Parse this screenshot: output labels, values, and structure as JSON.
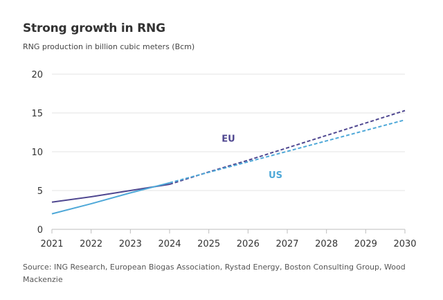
{
  "header": {
    "title": "Strong growth in RNG",
    "subtitle": "RNG production in billion cubic meters (Bcm)"
  },
  "footer": {
    "source": "Source: ING Research, European Biogas Association, Rystad Energy, Boston Consulting Group, Wood Mackenzie"
  },
  "chart_data": {
    "type": "line",
    "title": "Strong growth in RNG",
    "subtitle": "RNG production in billion cubic meters (Bcm)",
    "xlabel": "",
    "ylabel": "",
    "x": [
      2021,
      2022,
      2023,
      2024,
      2025,
      2026,
      2027,
      2028,
      2029,
      2030
    ],
    "xlim": [
      2021,
      2030
    ],
    "ylim": [
      0,
      20
    ],
    "yticks": [
      0,
      5,
      10,
      15,
      20
    ],
    "xticks": [
      "2021",
      "2022",
      "2023",
      "2024",
      "2025",
      "2026",
      "2027",
      "2028",
      "2029",
      "2030"
    ],
    "grid": true,
    "legend": "inline labels",
    "series": [
      {
        "name": "EU",
        "color": "#4f4790",
        "historical": {
          "x": [
            2021,
            2022,
            2023,
            2024
          ],
          "y": [
            3.5,
            4.2,
            5.0,
            5.8
          ]
        },
        "forecast": {
          "x": [
            2024,
            2025,
            2026,
            2027,
            2028,
            2029,
            2030
          ],
          "y": [
            5.8,
            7.4,
            8.9,
            10.5,
            12.1,
            13.7,
            15.3
          ]
        },
        "label_at": {
          "x": 2025.5,
          "y": 11.3
        }
      },
      {
        "name": "US",
        "color": "#4ea8d8",
        "historical": {
          "x": [
            2021,
            2022,
            2023,
            2024
          ],
          "y": [
            2.0,
            3.3,
            4.7,
            6.0
          ]
        },
        "forecast": {
          "x": [
            2024,
            2025,
            2026,
            2027,
            2028,
            2029,
            2030
          ],
          "y": [
            6.0,
            7.35,
            8.7,
            10.05,
            11.4,
            12.75,
            14.1
          ]
        },
        "label_at": {
          "x": 2026.7,
          "y": 6.6
        }
      }
    ]
  }
}
